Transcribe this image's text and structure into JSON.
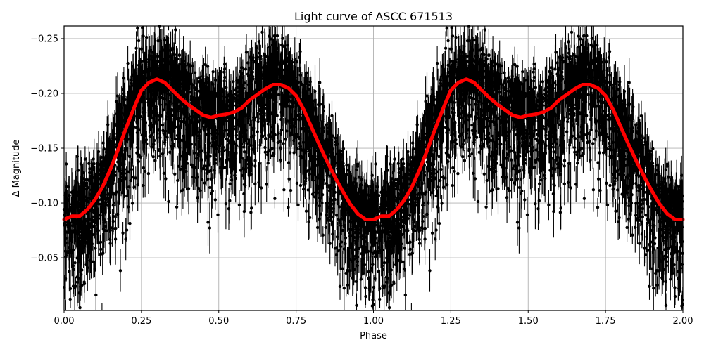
{
  "chart_data": {
    "type": "scatter",
    "title": "Light curve of ASCC 671513",
    "xlabel": "Phase",
    "ylabel": "Δ Magnitude",
    "xlim": [
      0.0,
      2.0
    ],
    "ylim": [
      -0.002,
      -0.2615
    ],
    "y_inverted": true,
    "grid": true,
    "legend": null,
    "x_ticks": [
      0.0,
      0.25,
      0.5,
      0.75,
      1.0,
      1.25,
      1.5,
      1.75,
      2.0
    ],
    "x_tick_labels": [
      "0.00",
      "0.25",
      "0.50",
      "0.75",
      "1.00",
      "1.25",
      "1.50",
      "1.75",
      "2.00"
    ],
    "y_ticks": [
      -0.25,
      -0.2,
      -0.15,
      -0.1,
      -0.05
    ],
    "y_tick_labels": [
      "−0.25",
      "−0.20",
      "−0.15",
      "−0.10",
      "−0.05"
    ],
    "series": [
      {
        "name": "observations",
        "kind": "errorbar-scatter",
        "color": "#000000",
        "description": "Thousands of black points with vertical error bars, phase-folded and repeated over two cycles; scatter spans roughly -0.26 to 0.0 around the binned curve",
        "typical_error": 0.012,
        "scatter_sigma": 0.035
      },
      {
        "name": "binned mean",
        "kind": "line",
        "color": "#ff0000",
        "line_width": 5,
        "period_repeat": true,
        "x": [
          0.0,
          0.025,
          0.05,
          0.075,
          0.1,
          0.125,
          0.15,
          0.175,
          0.2,
          0.225,
          0.25,
          0.275,
          0.3,
          0.325,
          0.35,
          0.375,
          0.4,
          0.425,
          0.45,
          0.475,
          0.5,
          0.525,
          0.55,
          0.575,
          0.6,
          0.625,
          0.65,
          0.675,
          0.7,
          0.725,
          0.75,
          0.775,
          0.8,
          0.825,
          0.85,
          0.875,
          0.9,
          0.925,
          0.95,
          0.975,
          1.0
        ],
        "values": [
          -0.085,
          -0.088,
          -0.088,
          -0.094,
          -0.103,
          -0.115,
          -0.131,
          -0.149,
          -0.168,
          -0.186,
          -0.203,
          -0.21,
          -0.213,
          -0.21,
          -0.203,
          -0.196,
          -0.19,
          -0.185,
          -0.18,
          -0.178,
          -0.18,
          -0.181,
          -0.183,
          -0.187,
          -0.194,
          -0.199,
          -0.204,
          -0.208,
          -0.208,
          -0.205,
          -0.198,
          -0.185,
          -0.169,
          -0.153,
          -0.138,
          -0.124,
          -0.111,
          -0.099,
          -0.09,
          -0.085,
          -0.085
        ]
      }
    ]
  },
  "colors": {
    "background": "#ffffff",
    "axes": "#000000",
    "grid": "#b0b0b0",
    "points": "#000000",
    "curve": "#ff0000"
  }
}
